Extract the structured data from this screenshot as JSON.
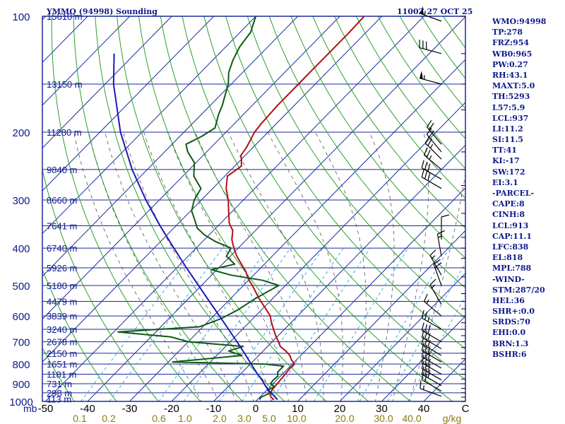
{
  "header": {
    "title": "YMMQ (94998) Sounding",
    "datetime": "1100Z 27 OCT 25"
  },
  "colors": {
    "frame": "#1a2a9c",
    "isotherm": "#1a2a9c",
    "dry_adiabat": "#2aa02a",
    "moist_adiabat": "#555555",
    "mixing_ratio": "#3aaad8",
    "temperature": "#b01010",
    "dewpoint": "#0d5a14",
    "parcel": "#1a1ab4",
    "wind": "#000000",
    "text": "#0d1a8c",
    "tick_temp": "#000000",
    "tick_mixing": "#8a7a10"
  },
  "side_panel": [
    "WMO:94998",
    "TP:278",
    "FRZ:954",
    "WB0:965",
    "PW:0.27",
    "RH:43.1",
    "MAXT:5.0",
    "TH:5293",
    "L57:5.9",
    "LCL:937",
    "LI:11.2",
    "SI:11.5",
    "TT:41",
    "KI:-17",
    "SW:172",
    "EI:3.1",
    "-PARCEL-",
    "CAPE:8",
    "CINH:8",
    "LCL:913",
    "CAP:11.1",
    "LFC:838",
    "EL:818",
    "MPL:788",
    "-WIND-",
    "STM:287/20",
    "HEL:36",
    "SHR+:0.0",
    "SRDS:70",
    "EHI:0.0",
    "BRN:1.3",
    "BSHR:6"
  ],
  "chart_data": {
    "type": "line",
    "title": "YMMQ (94998) Sounding",
    "subtitle": "1100Z 27 OCT 25",
    "xlabel": "C",
    "x_secondary_label": "g/kg",
    "y_unit_label": "mb",
    "x_range": [
      -50,
      50
    ],
    "y_range_mb": [
      1000,
      100
    ],
    "y_scale": "log",
    "skew": true,
    "pressure_ticks": [
      "100",
      "200",
      "300",
      "400",
      "500",
      "600",
      "700",
      "800",
      "900",
      "1000"
    ],
    "height_labels": [
      {
        "p": 100,
        "label": "15610 m"
      },
      {
        "p": 150,
        "label": "13150 m"
      },
      {
        "p": 200,
        "label": "11280 m"
      },
      {
        "p": 250,
        "label": "9840 m"
      },
      {
        "p": 300,
        "label": "8660 m"
      },
      {
        "p": 350,
        "label": "7641 m"
      },
      {
        "p": 400,
        "label": "6740 m"
      },
      {
        "p": 450,
        "label": "5926 m"
      },
      {
        "p": 500,
        "label": "5180 m"
      },
      {
        "p": 550,
        "label": "4479 m"
      },
      {
        "p": 600,
        "label": "3839 m"
      },
      {
        "p": 650,
        "label": "3240 m"
      },
      {
        "p": 700,
        "label": "2678 m"
      },
      {
        "p": 750,
        "label": "2150 m"
      },
      {
        "p": 800,
        "label": "1651 m"
      },
      {
        "p": 850,
        "label": "1181 m"
      },
      {
        "p": 900,
        "label": "731 m"
      },
      {
        "p": 950,
        "label": "298 m"
      },
      {
        "p": 985,
        "label": "113 m"
      }
    ],
    "temp_ticks": [
      "-50",
      "-40",
      "-30",
      "-20",
      "-10",
      "0",
      "10",
      "20",
      "30",
      "40"
    ],
    "mixing_ratio_ticks": [
      "0.1",
      "0.2",
      "0.6",
      "1.0",
      "2.0",
      "3.0",
      "5.0",
      "10.0",
      "20.0",
      "30.0",
      "40.0"
    ],
    "series": [
      {
        "name": "Temperature",
        "points": [
          [
            990,
            4.0
          ],
          [
            975,
            2.6
          ],
          [
            960,
            2.0
          ],
          [
            935,
            1.2
          ],
          [
            900,
            1.0
          ],
          [
            870,
            0.8
          ],
          [
            840,
            0.6
          ],
          [
            820,
            0.4
          ],
          [
            800,
            0.5
          ],
          [
            780,
            -1.2
          ],
          [
            760,
            -2.6
          ],
          [
            740,
            -4.6
          ],
          [
            720,
            -7.0
          ],
          [
            700,
            -8.5
          ],
          [
            680,
            -10.2
          ],
          [
            650,
            -12.6
          ],
          [
            620,
            -15.0
          ],
          [
            600,
            -16.5
          ],
          [
            570,
            -19.8
          ],
          [
            540,
            -23.3
          ],
          [
            500,
            -27.9
          ],
          [
            480,
            -30.5
          ],
          [
            460,
            -32.7
          ],
          [
            440,
            -35.5
          ],
          [
            420,
            -38.4
          ],
          [
            400,
            -41.0
          ],
          [
            380,
            -43.5
          ],
          [
            360,
            -45.4
          ],
          [
            345,
            -47.9
          ],
          [
            320,
            -51.0
          ],
          [
            300,
            -53.6
          ],
          [
            280,
            -56.8
          ],
          [
            260,
            -59.4
          ],
          [
            245,
            -58.4
          ],
          [
            235,
            -60.0
          ],
          [
            230,
            -61.0
          ],
          [
            220,
            -61.5
          ],
          [
            210,
            -62.3
          ],
          [
            200,
            -63.2
          ],
          [
            190,
            -63.6
          ],
          [
            180,
            -63.8
          ],
          [
            170,
            -64.0
          ],
          [
            160,
            -64.0
          ],
          [
            150,
            -64.0
          ],
          [
            140,
            -64.0
          ],
          [
            130,
            -64.0
          ],
          [
            120,
            -64.0
          ],
          [
            110,
            -64.0
          ],
          [
            100,
            -64.2
          ]
        ]
      },
      {
        "name": "Dewpoint",
        "points": [
          [
            990,
            0.5
          ],
          [
            975,
            0.3
          ],
          [
            950,
            1.5
          ],
          [
            935,
            0.2
          ],
          [
            915,
            1.0
          ],
          [
            900,
            -0.6
          ],
          [
            880,
            -0.8
          ],
          [
            860,
            -0.6
          ],
          [
            840,
            -1.6
          ],
          [
            810,
            -1.6
          ],
          [
            800,
            -6.5
          ],
          [
            790,
            -29.0
          ],
          [
            780,
            -24.0
          ],
          [
            760,
            -14.0
          ],
          [
            740,
            -18.2
          ],
          [
            720,
            -15.8
          ],
          [
            700,
            -30.0
          ],
          [
            680,
            -35.3
          ],
          [
            660,
            -49.0
          ],
          [
            640,
            -30.8
          ],
          [
            610,
            -27.6
          ],
          [
            580,
            -25.7
          ],
          [
            540,
            -24.1
          ],
          [
            500,
            -21.6
          ],
          [
            485,
            -26.6
          ],
          [
            470,
            -35.4
          ],
          [
            455,
            -41.3
          ],
          [
            440,
            -37.1
          ],
          [
            420,
            -40.9
          ],
          [
            400,
            -41.7
          ],
          [
            385,
            -46.8
          ],
          [
            370,
            -51.0
          ],
          [
            355,
            -54.4
          ],
          [
            340,
            -56.6
          ],
          [
            320,
            -59.8
          ],
          [
            300,
            -61.7
          ],
          [
            280,
            -62.8
          ],
          [
            260,
            -67.4
          ],
          [
            240,
            -70.4
          ],
          [
            225,
            -74.5
          ],
          [
            215,
            -76.7
          ],
          [
            205,
            -74.8
          ],
          [
            195,
            -73.6
          ],
          [
            180,
            -75.9
          ],
          [
            170,
            -77.2
          ],
          [
            160,
            -78.9
          ],
          [
            150,
            -80.7
          ],
          [
            140,
            -83.3
          ],
          [
            130,
            -85.2
          ],
          [
            120,
            -86.7
          ],
          [
            110,
            -87.5
          ],
          [
            100,
            -90.0
          ]
        ]
      },
      {
        "name": "Parcel",
        "points": [
          [
            990,
            4.8
          ],
          [
            960,
            2.5
          ],
          [
            930,
            0.0
          ],
          [
            913,
            -1.2
          ],
          [
            880,
            -3.5
          ],
          [
            850,
            -5.9
          ],
          [
            800,
            -9.8
          ],
          [
            750,
            -13.9
          ],
          [
            700,
            -18.4
          ],
          [
            650,
            -23.3
          ],
          [
            600,
            -28.6
          ],
          [
            550,
            -34.4
          ],
          [
            500,
            -40.7
          ],
          [
            450,
            -47.7
          ],
          [
            400,
            -55.3
          ],
          [
            350,
            -63.8
          ],
          [
            300,
            -73.2
          ],
          [
            250,
            -83.6
          ],
          [
            200,
            -95.1
          ],
          [
            150,
            -108.0
          ],
          [
            125,
            -115.0
          ]
        ]
      }
    ],
    "wind_barbs": [
      {
        "p": 103,
        "dir": 290,
        "kts": 55
      },
      {
        "p": 125,
        "dir": 285,
        "kts": 30
      },
      {
        "p": 150,
        "dir": 285,
        "kts": 55
      },
      {
        "p": 215,
        "dir": 320,
        "kts": 20
      },
      {
        "p": 225,
        "dir": 320,
        "kts": 20
      },
      {
        "p": 235,
        "dir": 315,
        "kts": 25
      },
      {
        "p": 250,
        "dir": 310,
        "kts": 25
      },
      {
        "p": 265,
        "dir": 300,
        "kts": 30
      },
      {
        "p": 280,
        "dir": 300,
        "kts": 30
      },
      {
        "p": 380,
        "dir": 360,
        "kts": 10
      },
      {
        "p": 420,
        "dir": 350,
        "kts": 15
      },
      {
        "p": 470,
        "dir": 330,
        "kts": 15
      },
      {
        "p": 500,
        "dir": 340,
        "kts": 20
      },
      {
        "p": 560,
        "dir": 330,
        "kts": 15
      },
      {
        "p": 600,
        "dir": 310,
        "kts": 15
      },
      {
        "p": 650,
        "dir": 300,
        "kts": 25
      },
      {
        "p": 700,
        "dir": 300,
        "kts": 30
      },
      {
        "p": 730,
        "dir": 300,
        "kts": 30
      },
      {
        "p": 760,
        "dir": 300,
        "kts": 30
      },
      {
        "p": 790,
        "dir": 300,
        "kts": 30
      },
      {
        "p": 820,
        "dir": 300,
        "kts": 30
      },
      {
        "p": 850,
        "dir": 300,
        "kts": 30
      },
      {
        "p": 880,
        "dir": 300,
        "kts": 30
      },
      {
        "p": 910,
        "dir": 300,
        "kts": 30
      },
      {
        "p": 940,
        "dir": 300,
        "kts": 20
      },
      {
        "p": 970,
        "dir": 290,
        "kts": 15
      }
    ]
  }
}
